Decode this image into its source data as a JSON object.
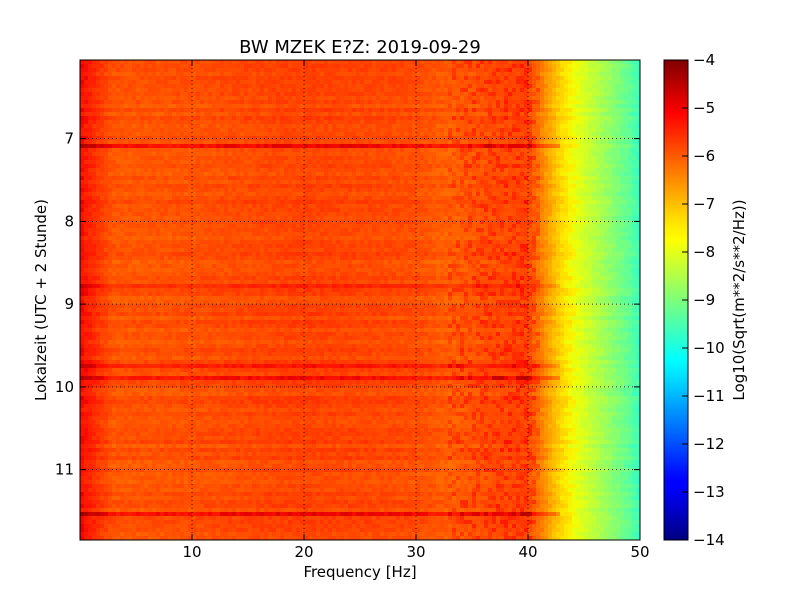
{
  "chart_data": {
    "type": "heatmap",
    "title": "BW MZEK E?Z: 2019-09-29",
    "xlabel": "Frequency [Hz]",
    "ylabel": "Lokalzeit (UTC + 2 Stunde)",
    "xlim": [
      0,
      50
    ],
    "ylim": [
      6.05,
      11.85
    ],
    "y_inverted": true,
    "x_ticks": [
      10,
      20,
      30,
      40,
      50
    ],
    "x_tick_labels": [
      "10",
      "20",
      "30",
      "40",
      "50"
    ],
    "y_ticks": [
      7,
      8,
      9,
      10,
      11
    ],
    "y_tick_labels": [
      "7",
      "8",
      "9",
      "10",
      "11"
    ],
    "grid": true,
    "colormap": "jet",
    "colorbar": {
      "label": "Log10(Sqrt(m**2/s**2/Hz))",
      "range": [
        -14,
        -4
      ],
      "ticks": [
        -4,
        -5,
        -6,
        -7,
        -8,
        -9,
        -10,
        -11,
        -12,
        -13,
        -14
      ],
      "tick_labels": [
        "−4",
        "−5",
        "−6",
        "−7",
        "−8",
        "−9",
        "−10",
        "−11",
        "−12",
        "−13",
        "−14"
      ]
    },
    "spectral_profile": {
      "frequency_hz": [
        0,
        1,
        3,
        10,
        20,
        30,
        33,
        37,
        40,
        41.5,
        43,
        45,
        47,
        49,
        50
      ],
      "log10_amplitude": [
        -5.0,
        -5.3,
        -5.8,
        -5.75,
        -5.6,
        -5.7,
        -5.9,
        -5.7,
        -5.6,
        -6.4,
        -7.2,
        -7.9,
        -8.6,
        -9.3,
        -9.8
      ]
    },
    "high_energy_bands": [
      {
        "time": 7.09,
        "delta": 0.6
      },
      {
        "time": 8.78,
        "delta": 0.45
      },
      {
        "time": 9.75,
        "delta": 0.6
      },
      {
        "time": 9.88,
        "delta": 0.55
      },
      {
        "time": 11.52,
        "delta": 0.7
      }
    ]
  }
}
